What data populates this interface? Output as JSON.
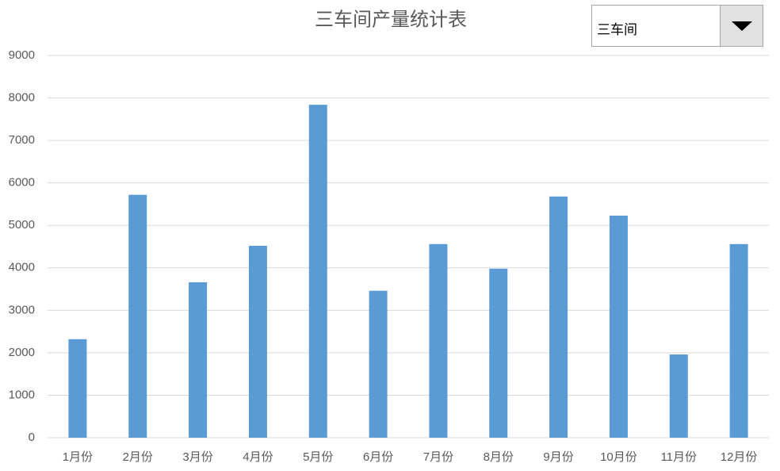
{
  "chart_data": {
    "type": "bar",
    "title": "三车间产量统计表",
    "categories": [
      "1月份",
      "2月份",
      "3月份",
      "4月份",
      "5月份",
      "6月份",
      "7月份",
      "8月份",
      "9月份",
      "10月份",
      "11月份",
      "12月份"
    ],
    "values": [
      2320,
      5720,
      3660,
      4520,
      7840,
      3460,
      4560,
      3980,
      5680,
      5230,
      1960,
      4560
    ],
    "color": "#5b9bd5",
    "ylim": [
      0,
      9000
    ],
    "yticks": [
      0,
      1000,
      2000,
      3000,
      4000,
      5000,
      6000,
      7000,
      8000,
      9000
    ],
    "grid": true
  },
  "dropdown": {
    "selected": "三车间"
  }
}
